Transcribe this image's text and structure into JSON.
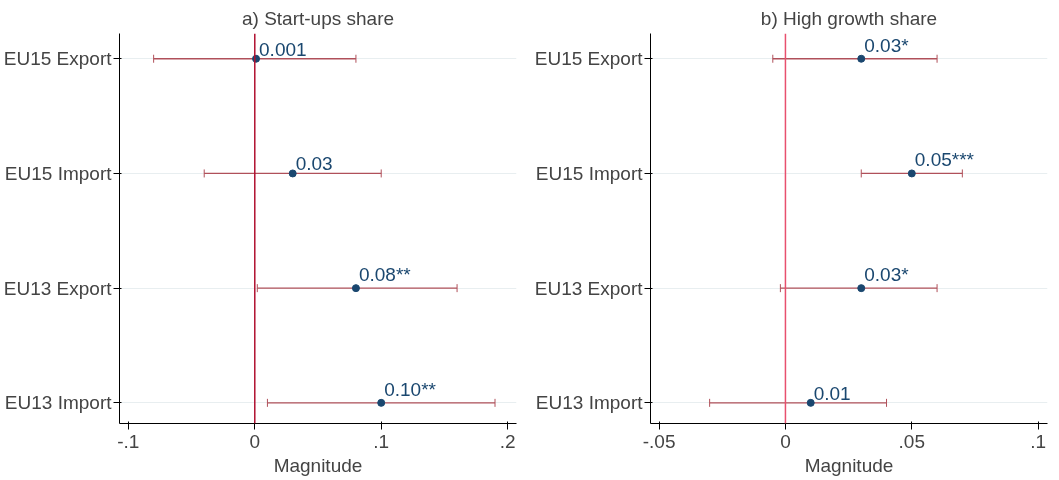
{
  "chart_data": [
    {
      "type": "scatter",
      "title": "a) Start-ups share",
      "xlabel": "Magnitude",
      "orientation": "horizontal",
      "categories": [
        "EU15 Export",
        "EU15 Import",
        "EU13 Export",
        "EU13 Import"
      ],
      "series": [
        {
          "color": "#1a476f",
          "values": [
            0.001,
            0.03,
            0.08,
            0.1
          ],
          "errors": [
            [
              -0.08,
              0.08
            ],
            [
              -0.04,
              0.1
            ],
            [
              0.002,
              0.16
            ],
            [
              0.01,
              0.19
            ]
          ],
          "value_labels": [
            "0.001",
            "0.03",
            "0.08**",
            "0.10**"
          ]
        }
      ],
      "xlim": [
        -0.107,
        0.207
      ],
      "xticks": [
        {
          "value": -0.1,
          "label": "-.1"
        },
        0,
        {
          "value": 0.1,
          "label": ".1"
        },
        {
          "value": 0.2,
          "label": ".2"
        }
      ],
      "ref_lines": [
        {
          "axis": "x",
          "value": 0,
          "color": "#b01030"
        }
      ],
      "grid": "y",
      "marker": "circle"
    },
    {
      "type": "scatter",
      "title": "b) High growth share",
      "xlabel": "Magnitude",
      "orientation": "horizontal",
      "categories": [
        "EU15 Export",
        "EU15 Import",
        "EU13 Export",
        "EU13 Import"
      ],
      "series": [
        {
          "color": "#1a476f",
          "values": [
            0.03,
            0.05,
            0.03,
            0.01
          ],
          "errors": [
            [
              -0.005,
              0.06
            ],
            [
              0.03,
              0.07
            ],
            [
              -0.002,
              0.06
            ],
            [
              -0.03,
              0.04
            ]
          ],
          "value_labels": [
            "0.03*",
            "0.05***",
            "0.03*",
            "0.01"
          ]
        }
      ],
      "xlim": [
        -0.0534,
        0.1037
      ],
      "xticks": [
        {
          "value": -0.05,
          "label": "-.05"
        },
        0,
        {
          "value": 0.05,
          "label": ".05"
        },
        {
          "value": 0.1,
          "label": ".1"
        }
      ],
      "ref_lines": [
        {
          "axis": "x",
          "value": 0,
          "color": "#e8506e"
        }
      ],
      "grid": "y",
      "marker": "circle"
    }
  ]
}
